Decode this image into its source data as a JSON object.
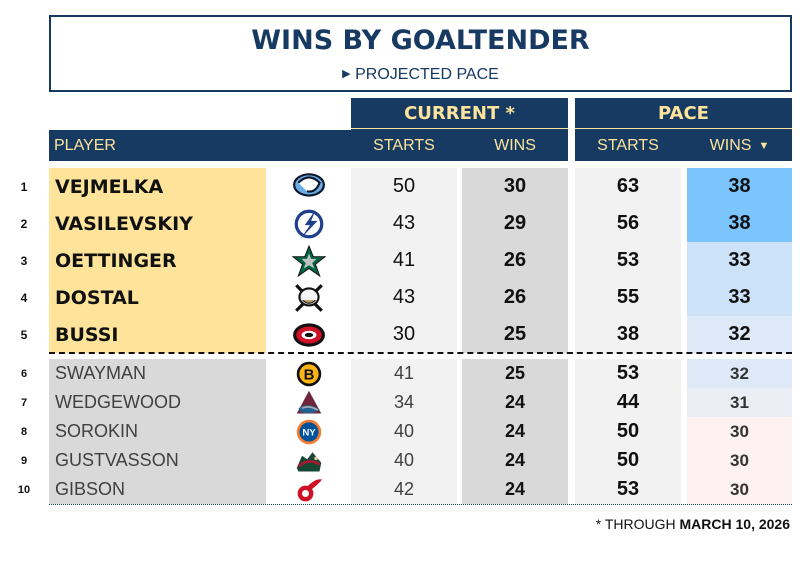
{
  "title": "WINS BY GOALTENDER",
  "subtitle": "PROJECTED PACE",
  "subtitle_icon": "triangle-right-icon",
  "colors": {
    "navy": "#173a63",
    "gold": "#fde49a",
    "top_player_bg": "#fde49a",
    "other_player_bg": "#d9d9d9"
  },
  "footnote": {
    "prefix": "* THROUGH ",
    "date": "MARCH 10, 2026"
  },
  "chart_data": {
    "type": "table",
    "groups": [
      "CURRENT *",
      "PACE"
    ],
    "columns": [
      "PLAYER",
      "STARTS",
      "WINS",
      "STARTS",
      "WINS"
    ],
    "sort": {
      "column": "PACE WINS",
      "direction": "descending",
      "icon": "caret-down-icon"
    },
    "rows": [
      {
        "rank": "1",
        "player": "VEJMELKA",
        "team_logo": "utah-mammoth-logo",
        "cur_starts": 50,
        "cur_wins": 30,
        "pace_starts": 63,
        "pace_wins": 38,
        "wins_color": "#7cc4fc"
      },
      {
        "rank": "2",
        "player": "VASILEVSKIY",
        "team_logo": "tampa-bay-lightning-logo",
        "cur_starts": 43,
        "cur_wins": 29,
        "pace_starts": 56,
        "pace_wins": 38,
        "wins_color": "#7cc4fc"
      },
      {
        "rank": "3",
        "player": "OETTINGER",
        "team_logo": "dallas-stars-logo",
        "cur_starts": 41,
        "cur_wins": 26,
        "pace_starts": 53,
        "pace_wins": 33,
        "wins_color": "#cce2f8"
      },
      {
        "rank": "4",
        "player": "DOSTAL",
        "team_logo": "anaheim-ducks-logo",
        "cur_starts": 43,
        "cur_wins": 26,
        "pace_starts": 55,
        "pace_wins": 33,
        "wins_color": "#cce2f8"
      },
      {
        "rank": "5",
        "player": "BUSSI",
        "team_logo": "carolina-hurricanes-logo",
        "cur_starts": 30,
        "cur_wins": 25,
        "pace_starts": 38,
        "pace_wins": 32,
        "wins_color": "#dde9f7"
      },
      {
        "rank": "6",
        "player": "SWAYMAN",
        "team_logo": "boston-bruins-logo",
        "cur_starts": 41,
        "cur_wins": 25,
        "pace_starts": 53,
        "pace_wins": 32,
        "wins_color": "#dde9f7"
      },
      {
        "rank": "7",
        "player": "WEDGEWOOD",
        "team_logo": "colorado-avalanche-logo",
        "cur_starts": 34,
        "cur_wins": 24,
        "pace_starts": 44,
        "pace_wins": 31,
        "wins_color": "#ebedf4"
      },
      {
        "rank": "8",
        "player": "SOROKIN",
        "team_logo": "new-york-islanders-logo",
        "cur_starts": 40,
        "cur_wins": 24,
        "pace_starts": 50,
        "pace_wins": 30,
        "wins_color": "#fdf1f1"
      },
      {
        "rank": "9",
        "player": "GUSTVASSON",
        "team_logo": "minnesota-wild-logo",
        "cur_starts": 40,
        "cur_wins": 24,
        "pace_starts": 50,
        "pace_wins": 30,
        "wins_color": "#fdf1f1"
      },
      {
        "rank": "10",
        "player": "GIBSON",
        "team_logo": "detroit-red-wings-logo",
        "cur_starts": 42,
        "cur_wins": 24,
        "pace_starts": 53,
        "pace_wins": 30,
        "wins_color": "#fdf1f1"
      }
    ]
  }
}
